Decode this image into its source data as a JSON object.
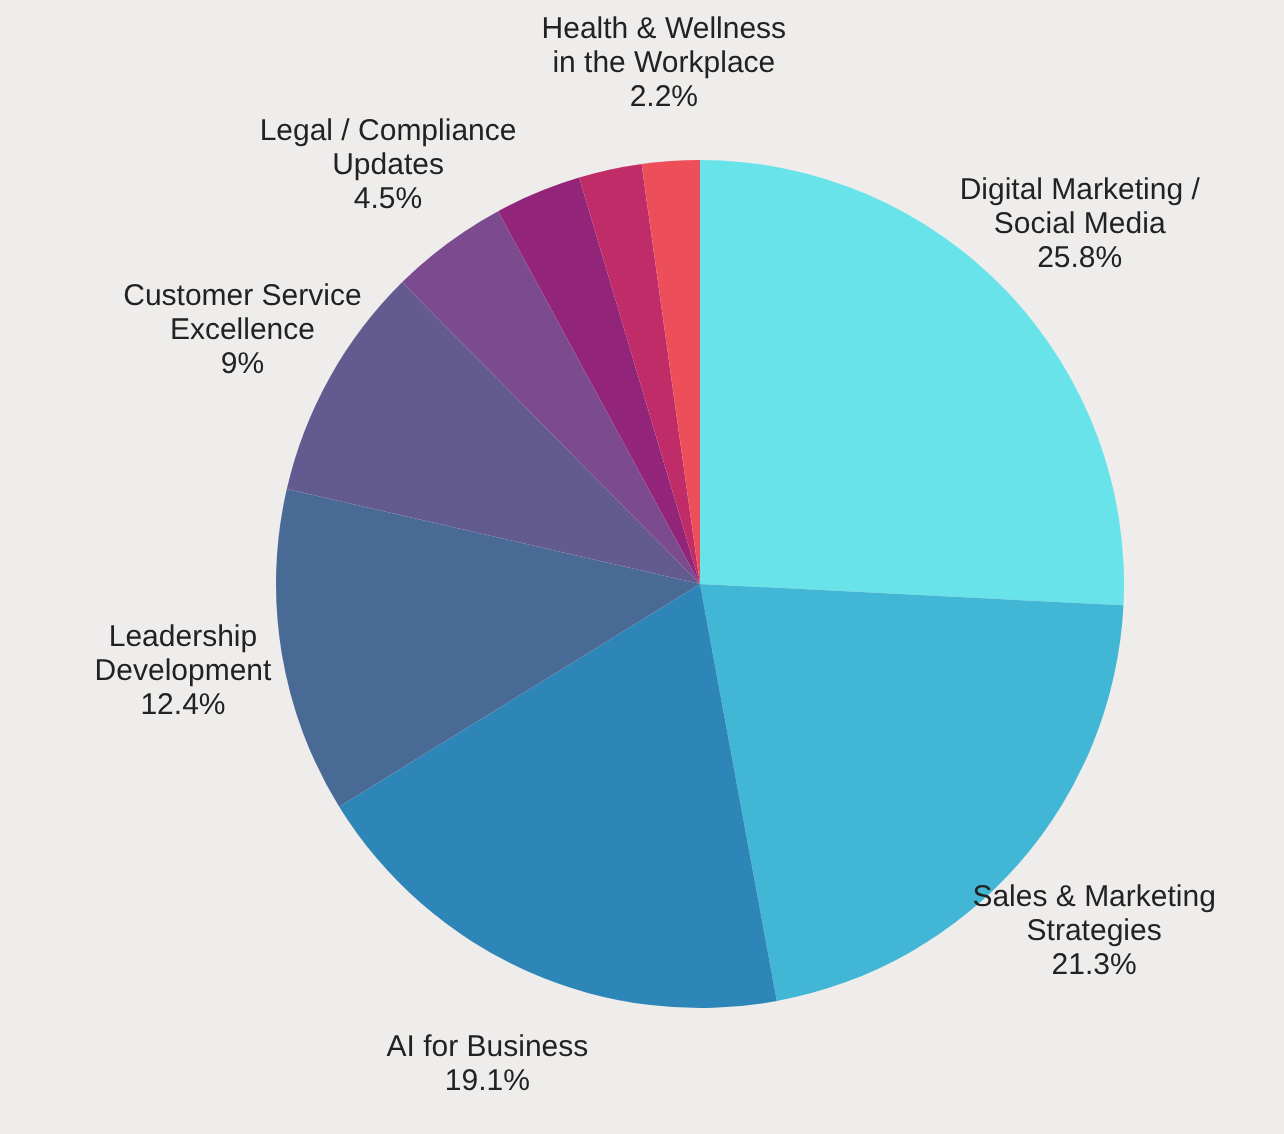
{
  "chart_data": {
    "type": "pie",
    "categories": [
      "Digital Marketing / Social Media",
      "Sales & Marketing Strategies",
      "AI for Business",
      "Leadership Development",
      "Customer Service Excellence",
      "Legal / Compliance Updates",
      null,
      null,
      "Health & Wellness in the Workplace"
    ],
    "values": [
      25.8,
      21.3,
      19.1,
      12.4,
      9,
      4.5,
      3.3,
      2.4,
      2.2
    ],
    "value_labels": [
      "25.8%",
      "21.3%",
      "19.1%",
      "12.4%",
      "9%",
      "4.5%",
      null,
      null,
      "2.2%"
    ],
    "colors": [
      "#67e3e9",
      "#41b6d5",
      "#2e86b8",
      "#4a6a96",
      "#635a8f",
      "#7c4a8f",
      "#92257a",
      "#c02c67",
      "#ec4f5a"
    ]
  }
}
